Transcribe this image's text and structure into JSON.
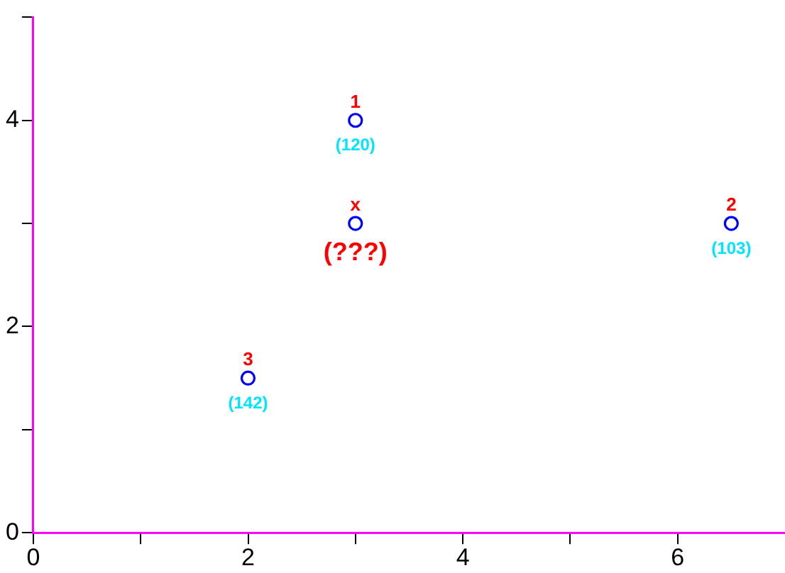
{
  "chart_data": {
    "type": "scatter",
    "xlim": [
      0,
      7
    ],
    "ylim": [
      0,
      5
    ],
    "xticks": [
      0,
      {
        "value": 1,
        "label": null
      },
      2,
      {
        "value": 3,
        "label": null
      },
      4,
      {
        "value": 5,
        "label": null
      },
      6
    ],
    "yticks": [
      0,
      {
        "value": 1,
        "label": null
      },
      2,
      {
        "value": 3,
        "label": null
      },
      4,
      {
        "value": 5,
        "label": null
      }
    ],
    "series": [
      {
        "color": "#0000ff",
        "x": [
          3,
          6.5,
          2
        ],
        "values": [
          4,
          3,
          1.5
        ]
      },
      {
        "color": "#0000ff",
        "x": [
          3
        ],
        "values": [
          3
        ]
      }
    ],
    "annotations": [
      {
        "text": "1",
        "x": 3,
        "y": 4
      },
      {
        "text": "(120)",
        "x": 3,
        "y": 4
      },
      {
        "text": "2",
        "x": 6.5,
        "y": 3
      },
      {
        "text": "(103)",
        "x": 6.5,
        "y": 3
      },
      {
        "text": "3",
        "x": 2,
        "y": 1.5
      },
      {
        "text": "(142)",
        "x": 2,
        "y": 1.5
      },
      {
        "text": "x",
        "x": 3,
        "y": 3
      },
      {
        "text": "(???)",
        "x": 3,
        "y": 3
      }
    ],
    "marker": "circle",
    "grid": false
  }
}
